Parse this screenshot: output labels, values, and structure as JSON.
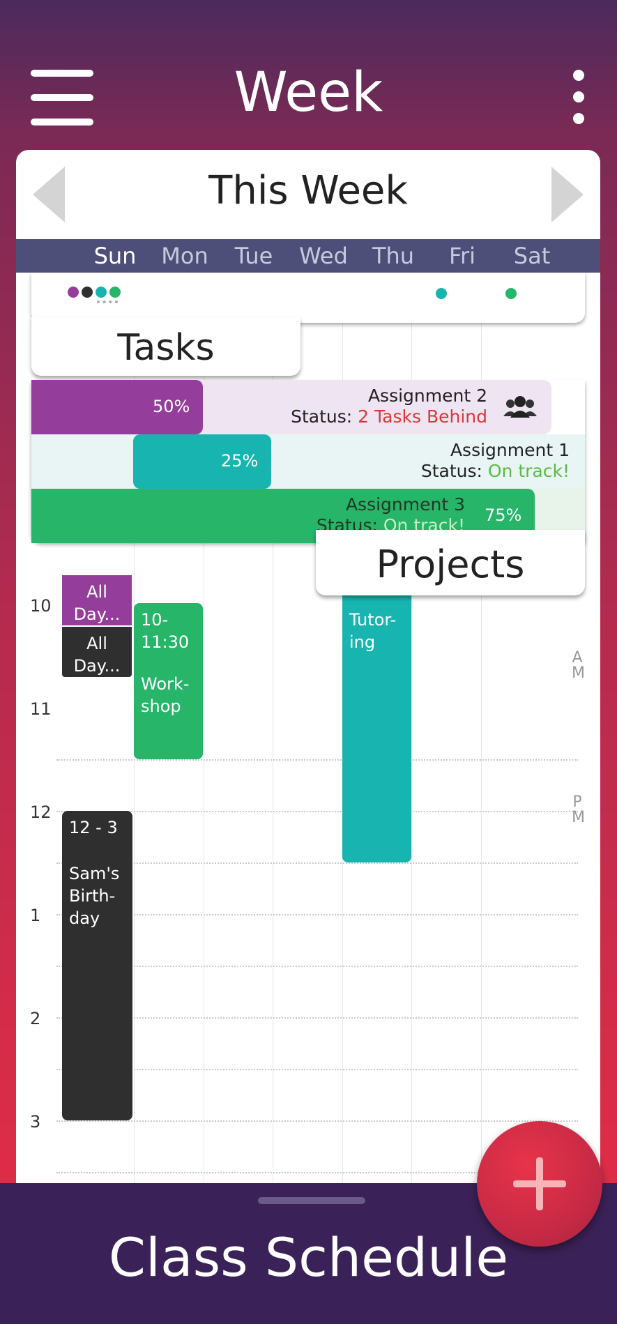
{
  "app_bar": {
    "title": "Week",
    "menu_icon": "hamburger-icon",
    "more_icon": "more-vert-icon"
  },
  "week_nav": {
    "title": "This Week",
    "prev_icon": "chevron-left-icon",
    "next_icon": "chevron-right-icon"
  },
  "days": [
    "Sun",
    "Mon",
    "Tue",
    "Wed",
    "Thu",
    "Fri",
    "Sat"
  ],
  "selected_day": "Sun",
  "tasks": {
    "label": "Tasks"
  },
  "projects": {
    "label": "Projects",
    "status_prefix": "Status:",
    "items": [
      {
        "title": "Assignment 2",
        "status": "2 Tasks Behind",
        "progress": "50%",
        "color": "#953d9b",
        "status_color": "#d93838",
        "icon": "group-icon"
      },
      {
        "title": "Assignment 1",
        "status": "On track!",
        "progress": "25%",
        "color": "#18b5b0",
        "status_color": "#5cb946"
      },
      {
        "title": "Assignment 3",
        "status": "On track!",
        "progress": "75%",
        "color": "#27b56a",
        "status_color": "#c8f0c0"
      }
    ]
  },
  "hours": [
    "10",
    "11",
    "12",
    "1",
    "2",
    "3"
  ],
  "ampm": {
    "am": "A M",
    "pm": "P M"
  },
  "events": {
    "allday1": "All Day...",
    "allday2": "All Day...",
    "workshop_time": "10-11:30",
    "workshop_title": "Work-shop",
    "tutoring_title": "Tutor-ing",
    "birthday_time": "12 - 3",
    "birthday_title": "Sam's Birth-day"
  },
  "bottom": {
    "title": "Class Schedule"
  },
  "fab": {
    "icon": "plus-icon"
  }
}
